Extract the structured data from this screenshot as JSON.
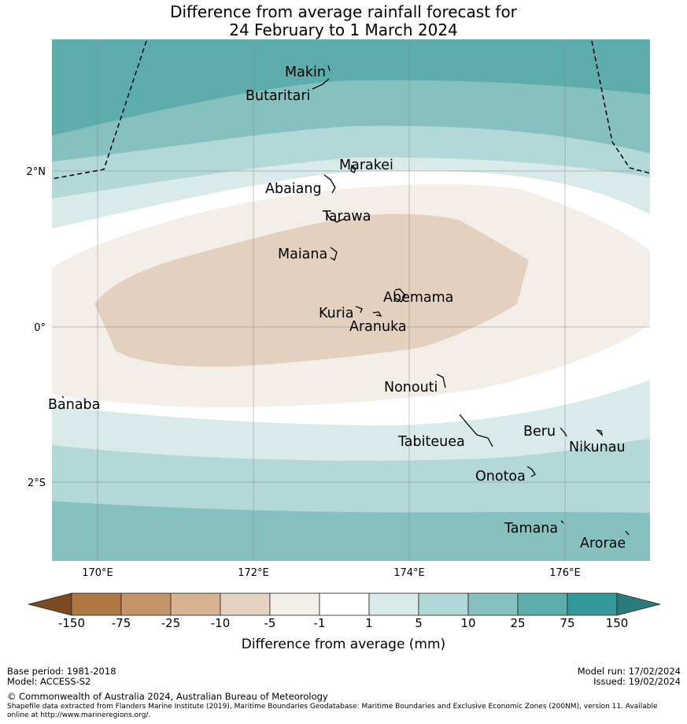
{
  "title": {
    "line1": "Difference from average rainfall forecast for",
    "line2": "24 February to 1 March 2024"
  },
  "map": {
    "lat_labels": [
      "2°N",
      "0°",
      "2°S"
    ],
    "lon_labels": [
      "170°E",
      "172°E",
      "174°E",
      "176°E"
    ],
    "places": [
      "Makin",
      "Butaritari",
      "Marakei",
      "Abaiang",
      "Tarawa",
      "Maiana",
      "Abemama",
      "Kuria",
      "Aranuka",
      "Nonouti",
      "Banaba",
      "Tabiteuea",
      "Beru",
      "Nikunau",
      "Onotoa",
      "Tamana",
      "Arorae"
    ]
  },
  "colorbar": {
    "ticks": [
      "-150",
      "-75",
      "-25",
      "-10",
      "-5",
      "-1",
      "1",
      "5",
      "10",
      "25",
      "75",
      "150"
    ],
    "colors": [
      "#7a4a22",
      "#b07840",
      "#c4956a",
      "#d7b392",
      "#e6d2c1",
      "#f4eee9",
      "#ffffff",
      "#d8eae9",
      "#b2d8d7",
      "#86c1c0",
      "#5cadac",
      "#33999a",
      "#2a7b7c"
    ],
    "label": "Difference from average (mm)"
  },
  "footer": {
    "base_period": "Base period: 1981-2018",
    "model": "Model: ACCESS-S2",
    "model_run": "Model run: 17/02/2024",
    "issued": "Issued: 19/02/2024",
    "copyright": "© Commonwealth of Australia 2024, Australian Bureau of Meteorology",
    "shapefile_line1": "Shapefile data extracted from Flanders Marine Institute (2019), Maritime Boundaries Geodatabase: Maritime Boundaries and Exclusive Economic Zones (200NM), version 11. Available",
    "shapefile_line2": "online at http://www.marineregions.org/."
  }
}
